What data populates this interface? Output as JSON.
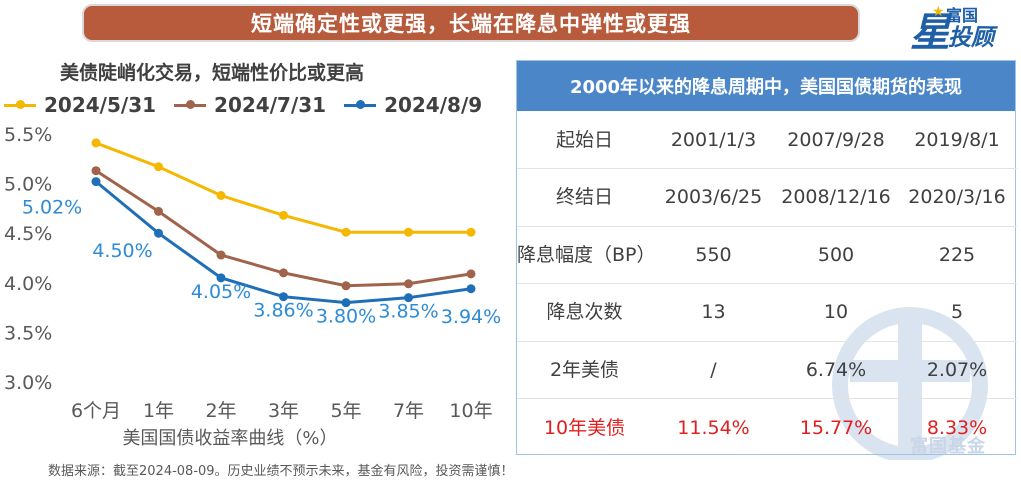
{
  "banner": {
    "text": "短端确定性或更强，长端在降息中弹性或更强"
  },
  "logo": {
    "char_big": "星",
    "top": "富国",
    "bottom": "投顾"
  },
  "watermark": {
    "text": "富国基金"
  },
  "chart_data": {
    "type": "line",
    "subtitle": "美债陡峭化交易，短端性价比或更高",
    "xlabel": "美国国债收益率曲线（%）",
    "categories": [
      "6个月",
      "1年",
      "2年",
      "3年",
      "5年",
      "7年",
      "10年"
    ],
    "y_ticks": [
      "5.5%",
      "5.0%",
      "4.5%",
      "4.0%",
      "3.5%",
      "3.0%"
    ],
    "ylim": [
      3.0,
      5.5
    ],
    "grid": false,
    "legend_position": "top",
    "series": [
      {
        "name": "2024/5/31",
        "color": "#f5b800",
        "values": [
          5.41,
          5.17,
          4.88,
          4.68,
          4.51,
          4.51,
          4.51
        ]
      },
      {
        "name": "2024/7/31",
        "color": "#a0634b",
        "values": [
          5.13,
          4.72,
          4.28,
          4.1,
          3.97,
          3.99,
          4.09
        ]
      },
      {
        "name": "2024/8/9",
        "color": "#1f6fb8",
        "values": [
          5.02,
          4.5,
          4.05,
          3.86,
          3.8,
          3.85,
          3.94
        ]
      }
    ],
    "data_labels": {
      "series": "2024/8/9",
      "color": "#2e8bd6",
      "texts": [
        "5.02%",
        "4.50%",
        "4.05%",
        "3.86%",
        "3.80%",
        "3.85%",
        "3.94%"
      ]
    }
  },
  "source": "数据来源：截至2024-08-09。历史业绩不预示未来，基金有风险，投资需谨慎！",
  "table": {
    "title": "2000年以来的降息周期中，美国国债期货的表现",
    "rows": [
      {
        "label": "起始日",
        "cells": [
          "2001/1/3",
          "2007/9/28",
          "2019/8/1"
        ],
        "red": false
      },
      {
        "label": "终结日",
        "cells": [
          "2003/6/25",
          "2008/12/16",
          "2020/3/16"
        ],
        "red": false
      },
      {
        "label": "降息幅度（BP）",
        "cells": [
          "550",
          "500",
          "225"
        ],
        "red": false
      },
      {
        "label": "降息次数",
        "cells": [
          "13",
          "10",
          "5"
        ],
        "red": false
      },
      {
        "label": "2年美债",
        "cells": [
          "/",
          "6.74%",
          "2.07%"
        ],
        "red": false
      },
      {
        "label": "10年美债",
        "cells": [
          "11.54%",
          "15.77%",
          "8.33%"
        ],
        "red": true
      }
    ]
  }
}
